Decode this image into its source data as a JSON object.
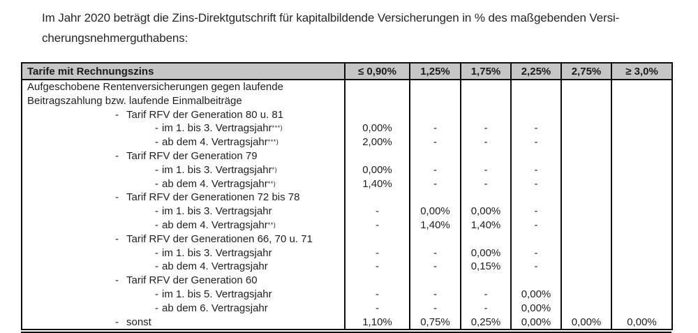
{
  "intro": {
    "line1": "Im Jahr 2020 beträgt die Zins-Direktgutschrift für kapitalbildende Versicherungen in % des maßgebenden Versi-",
    "line2": "cherungsnehmerguthabens:"
  },
  "table": {
    "bullet": "-",
    "header": {
      "label": "Tarife mit Rechnungszins",
      "columns": [
        "≤ 0,90%",
        "1,25%",
        "1,75%",
        "2,25%",
        "2,75%",
        "≥ 3,0%"
      ]
    },
    "rows": [
      {
        "indent": 0,
        "label": "Aufgeschobene Rentenversicherungen gegen laufende",
        "sup": "",
        "values": [
          "",
          "",
          "",
          "",
          "",
          ""
        ]
      },
      {
        "indent": 0,
        "label": "Beitragszahlung bzw. laufende Einmalbeiträge",
        "sup": "",
        "values": [
          "",
          "",
          "",
          "",
          "",
          ""
        ]
      },
      {
        "indent": 1,
        "label": "Tarif RFV der Generation 80 u. 81",
        "sup": "",
        "values": [
          "",
          "",
          "",
          "",
          "",
          ""
        ]
      },
      {
        "indent": 2,
        "label": "im 1. bis 3. Vertragsjahr",
        "sup": "***)",
        "values": [
          "0,00%",
          "-",
          "-",
          "-",
          "",
          ""
        ]
      },
      {
        "indent": 2,
        "label": "ab dem 4. Vertragsjahr",
        "sup": "***)",
        "values": [
          "2,00%",
          "-",
          "-",
          "-",
          "",
          ""
        ]
      },
      {
        "indent": 1,
        "label": "Tarif RFV der Generation 79",
        "sup": "",
        "values": [
          "",
          "",
          "",
          "",
          "",
          ""
        ]
      },
      {
        "indent": 2,
        "label": "im 1. bis 3. Vertragsjahr",
        "sup": "*)",
        "values": [
          "0,00%",
          "-",
          "-",
          "-",
          "",
          ""
        ]
      },
      {
        "indent": 2,
        "label": "ab dem 4. Vertragsjahr",
        "sup": "**)",
        "values": [
          "1,40%",
          "-",
          "-",
          "-",
          "",
          ""
        ]
      },
      {
        "indent": 1,
        "label": "Tarif RFV der Generationen 72 bis 78",
        "sup": "",
        "values": [
          "",
          "",
          "",
          "",
          "",
          ""
        ]
      },
      {
        "indent": 2,
        "label": "im 1. bis 3. Vertragsjahr",
        "sup": "",
        "values": [
          "-",
          "0,00%",
          "0,00%",
          "-",
          "",
          ""
        ]
      },
      {
        "indent": 2,
        "label": "ab dem 4. Vertragsjahr",
        "sup": "**)",
        "values": [
          "-",
          "1,40%",
          "1,40%",
          "-",
          "",
          ""
        ]
      },
      {
        "indent": 1,
        "label": "Tarif RFV der Generationen 66, 70 u. 71",
        "sup": "",
        "values": [
          "",
          "",
          "",
          "",
          "",
          ""
        ]
      },
      {
        "indent": 2,
        "label": "im 1. bis 3. Vertragsjahr",
        "sup": "",
        "values": [
          "-",
          "-",
          "0,00%",
          "-",
          "",
          ""
        ]
      },
      {
        "indent": 2,
        "label": "ab dem 4. Vertragsjahr",
        "sup": "",
        "values": [
          "-",
          "-",
          "0,15%",
          "-",
          "",
          ""
        ]
      },
      {
        "indent": 1,
        "label": "Tarif RFV der Generation 60",
        "sup": "",
        "values": [
          "",
          "",
          "",
          "",
          "",
          ""
        ]
      },
      {
        "indent": 2,
        "label": "im 1. bis 5. Vertragsjahr",
        "sup": "",
        "values": [
          "-",
          "-",
          "-",
          "0,00%",
          "",
          ""
        ]
      },
      {
        "indent": 2,
        "label": "ab dem 6. Vertragsjahr",
        "sup": "",
        "values": [
          "-",
          "-",
          "-",
          "0,00%",
          "",
          ""
        ]
      },
      {
        "indent": 1,
        "label": "sonst",
        "sup": "",
        "values": [
          "1,10%",
          "0,75%",
          "0,25%",
          "0,00%",
          "0,00%",
          "0,00%"
        ]
      }
    ]
  },
  "colors": {
    "header_bg": "#c6c6c6",
    "border": "#0e0e0e",
    "text": "#1c1c1c",
    "background": "#ffffff"
  }
}
